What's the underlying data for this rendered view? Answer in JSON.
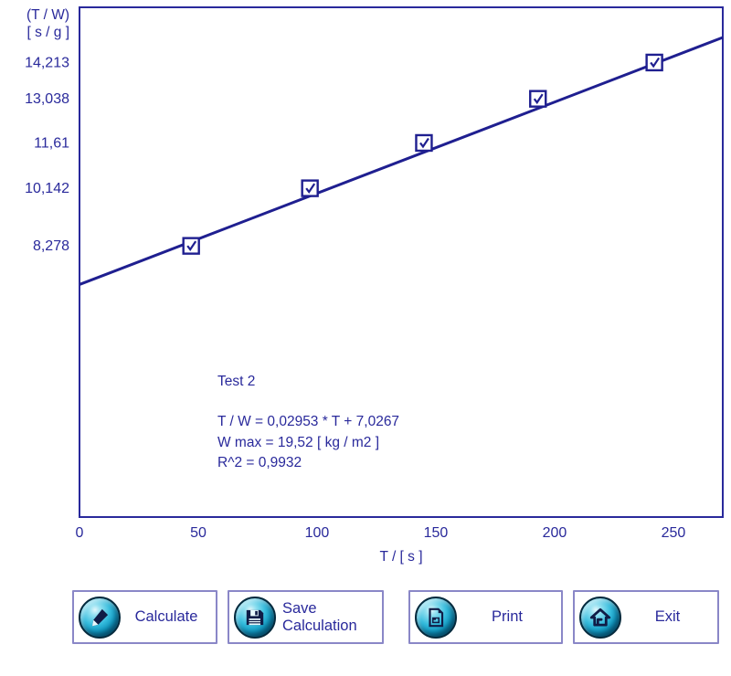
{
  "window": {
    "background": "#ffffff"
  },
  "colors": {
    "text_navy": "#29299b",
    "line_navy": "#1f1f90",
    "plot_border": "#29299b",
    "button_border": "#8a87c7",
    "icon_sphere_teal": "#2cb9dc",
    "icon_glyph_navy": "#101c46"
  },
  "chart_data": {
    "type": "scatter",
    "title": "",
    "xlabel": "T / [ s ]",
    "ylabel_lines": [
      "(T / W)",
      "[ s / g ]"
    ],
    "x_ticks": [
      0,
      50,
      100,
      150,
      200,
      250
    ],
    "x_tick_labels": [
      "0",
      "50",
      "100",
      "150",
      "200",
      "250"
    ],
    "xlim": [
      0,
      270.8
    ],
    "ylim": [
      -0.5,
      16.0
    ],
    "grid": false,
    "legend": null,
    "y_ticks": [
      {
        "value": 14.213,
        "label": "14,213"
      },
      {
        "value": 13.038,
        "label": "13,038"
      },
      {
        "value": 11.61,
        "label": "11,61"
      },
      {
        "value": 10.142,
        "label": "10,142"
      },
      {
        "value": 8.278,
        "label": "8,278"
      }
    ],
    "points": [
      {
        "x": 47,
        "y": 8.278
      },
      {
        "x": 97,
        "y": 10.142
      },
      {
        "x": 145,
        "y": 11.61
      },
      {
        "x": 193,
        "y": 13.038
      },
      {
        "x": 242,
        "y": 14.213
      }
    ],
    "marker": "checkbox",
    "fit_line": {
      "slope": 0.02953,
      "intercept": 7.0267
    },
    "annotation": {
      "series_label": "Test 2",
      "equation": "T / W = 0,02953 * T + 7,0267",
      "wmax": "W max = 19,52 [ kg / m2 ]",
      "r_squared": "R^2 = 0,9932"
    }
  },
  "buttons": {
    "calculate": {
      "label": "Calculate",
      "icon": "pencil-icon"
    },
    "save": {
      "label": "Save Calculation",
      "icon": "floppy-disk-icon"
    },
    "print": {
      "label": "Print",
      "icon": "document-icon"
    },
    "exit": {
      "label": "Exit",
      "icon": "home-icon"
    }
  }
}
